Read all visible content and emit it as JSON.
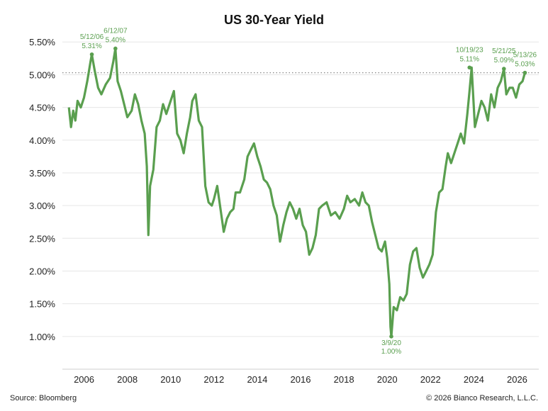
{
  "colors": {
    "series": "#5a9f4f",
    "grid": "#e6e6e6",
    "reference_line": "#888888"
  },
  "footer": {
    "source": "Source: Bloomberg",
    "copyright": "© 2026 Bianco Research, L.L.C."
  },
  "chart_data": {
    "type": "line",
    "title": "US 30-Year Yield",
    "xlabel": "",
    "ylabel": "",
    "xlim": [
      2005,
      2027
    ],
    "ylim": [
      0.5,
      5.6
    ],
    "grid": true,
    "y_ticks": [
      {
        "value": 1.0,
        "label": "1.00%"
      },
      {
        "value": 1.5,
        "label": "1.50%"
      },
      {
        "value": 2.0,
        "label": "2.00%"
      },
      {
        "value": 2.5,
        "label": "2.50%"
      },
      {
        "value": 3.0,
        "label": "3.00%"
      },
      {
        "value": 3.5,
        "label": "3.50%"
      },
      {
        "value": 4.0,
        "label": "4.00%"
      },
      {
        "value": 4.5,
        "label": "4.50%"
      },
      {
        "value": 5.0,
        "label": "5.00%"
      },
      {
        "value": 5.5,
        "label": "5.50%"
      }
    ],
    "x_ticks": [
      {
        "value": 2006,
        "label": "2006"
      },
      {
        "value": 2008,
        "label": "2008"
      },
      {
        "value": 2010,
        "label": "2010"
      },
      {
        "value": 2012,
        "label": "2012"
      },
      {
        "value": 2014,
        "label": "2014"
      },
      {
        "value": 2016,
        "label": "2016"
      },
      {
        "value": 2018,
        "label": "2018"
      },
      {
        "value": 2020,
        "label": "2020"
      },
      {
        "value": 2022,
        "label": "2022"
      },
      {
        "value": 2024,
        "label": "2024"
      },
      {
        "value": 2026,
        "label": "2026"
      }
    ],
    "reference_line": 5.03,
    "series": [
      {
        "x": [
          2005.3,
          2005.4,
          2005.5,
          2005.6,
          2005.7,
          2005.85,
          2006.0,
          2006.15,
          2006.3,
          2006.36,
          2006.5,
          2006.65,
          2006.8,
          2007.0,
          2007.2,
          2007.35,
          2007.45,
          2007.55,
          2007.7,
          2007.85,
          2008.0,
          2008.2,
          2008.35,
          2008.5,
          2008.65,
          2008.8,
          2008.9,
          2008.97,
          2009.05,
          2009.2,
          2009.35,
          2009.5,
          2009.65,
          2009.8,
          2010.0,
          2010.15,
          2010.3,
          2010.45,
          2010.6,
          2010.75,
          2010.9,
          2011.0,
          2011.15,
          2011.3,
          2011.45,
          2011.6,
          2011.75,
          2011.9,
          2012.0,
          2012.15,
          2012.3,
          2012.45,
          2012.6,
          2012.75,
          2012.9,
          2013.0,
          2013.2,
          2013.4,
          2013.55,
          2013.7,
          2013.85,
          2014.0,
          2014.15,
          2014.3,
          2014.45,
          2014.6,
          2014.75,
          2014.9,
          2015.05,
          2015.2,
          2015.35,
          2015.5,
          2015.65,
          2015.8,
          2015.95,
          2016.1,
          2016.25,
          2016.4,
          2016.55,
          2016.7,
          2016.85,
          2017.0,
          2017.2,
          2017.4,
          2017.6,
          2017.8,
          2018.0,
          2018.15,
          2018.3,
          2018.5,
          2018.7,
          2018.85,
          2019.0,
          2019.15,
          2019.3,
          2019.45,
          2019.6,
          2019.75,
          2019.9,
          2020.0,
          2020.1,
          2020.15,
          2020.19,
          2020.3,
          2020.45,
          2020.6,
          2020.75,
          2020.9,
          2021.05,
          2021.2,
          2021.35,
          2021.5,
          2021.65,
          2021.8,
          2021.95,
          2022.1,
          2022.25,
          2022.4,
          2022.55,
          2022.7,
          2022.8,
          2022.95,
          2023.1,
          2023.25,
          2023.4,
          2023.55,
          2023.7,
          2023.8,
          2023.9,
          2024.05,
          2024.2,
          2024.35,
          2024.5,
          2024.65,
          2024.8,
          2024.95,
          2025.1,
          2025.25,
          2025.39,
          2025.5,
          2025.65,
          2025.8,
          2025.95,
          2026.1,
          2026.25,
          2026.36
        ],
        "y": [
          4.5,
          4.2,
          4.45,
          4.3,
          4.6,
          4.5,
          4.65,
          4.9,
          5.2,
          5.31,
          5.05,
          4.8,
          4.7,
          4.85,
          4.95,
          5.2,
          5.4,
          4.9,
          4.75,
          4.55,
          4.35,
          4.45,
          4.7,
          4.55,
          4.3,
          4.1,
          3.6,
          2.55,
          3.3,
          3.55,
          4.2,
          4.3,
          4.55,
          4.4,
          4.6,
          4.75,
          4.1,
          4.0,
          3.8,
          4.1,
          4.35,
          4.6,
          4.7,
          4.3,
          4.2,
          3.3,
          3.05,
          3.0,
          3.1,
          3.3,
          2.95,
          2.6,
          2.8,
          2.9,
          2.95,
          3.2,
          3.2,
          3.4,
          3.75,
          3.85,
          3.95,
          3.75,
          3.6,
          3.4,
          3.35,
          3.25,
          3.0,
          2.85,
          2.45,
          2.7,
          2.9,
          3.05,
          2.95,
          2.8,
          2.95,
          2.7,
          2.6,
          2.25,
          2.35,
          2.55,
          2.95,
          3.0,
          3.05,
          2.85,
          2.9,
          2.8,
          2.95,
          3.15,
          3.05,
          3.1,
          3.0,
          3.2,
          3.05,
          3.0,
          2.75,
          2.55,
          2.35,
          2.3,
          2.45,
          2.2,
          1.8,
          1.15,
          1.0,
          1.45,
          1.4,
          1.6,
          1.55,
          1.65,
          2.1,
          2.3,
          2.35,
          2.05,
          1.9,
          2.0,
          2.1,
          2.25,
          2.9,
          3.2,
          3.25,
          3.6,
          3.8,
          3.65,
          3.8,
          3.95,
          4.1,
          3.95,
          4.4,
          4.75,
          5.11,
          4.2,
          4.4,
          4.6,
          4.5,
          4.3,
          4.7,
          4.5,
          4.8,
          4.9,
          5.09,
          4.7,
          4.8,
          4.8,
          4.65,
          4.85,
          4.9,
          5.03
        ]
      }
    ],
    "annotations": [
      {
        "x": 2006.36,
        "y": 5.31,
        "date": "5/12/06",
        "value": "5.31%"
      },
      {
        "x": 2007.45,
        "y": 5.4,
        "date": "6/12/07",
        "value": "5.40%"
      },
      {
        "x": 2020.19,
        "y": 1.0,
        "date": "3/9/20",
        "value": "1.00%"
      },
      {
        "x": 2023.8,
        "y": 5.11,
        "date": "10/19/23",
        "value": "5.11%"
      },
      {
        "x": 2025.39,
        "y": 5.09,
        "date": "5/21/25",
        "value": "5.09%"
      },
      {
        "x": 2026.36,
        "y": 5.03,
        "date": "5/13/26",
        "value": "5.03%"
      }
    ]
  }
}
